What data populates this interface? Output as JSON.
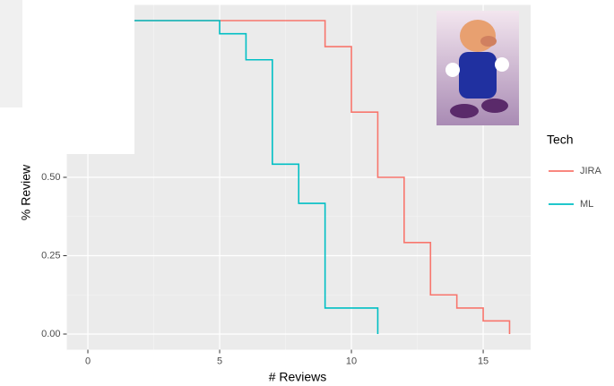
{
  "chart_data": {
    "type": "step",
    "x_label": "# Reviews",
    "y_label": "% Review",
    "legend_title": "Tech",
    "legend_position": "right",
    "series": [
      {
        "name": "JIRA",
        "color": "#f8766d",
        "x": [
          0,
          9,
          10,
          11,
          12,
          13,
          14,
          15,
          16
        ],
        "values": [
          1,
          0.917,
          0.708,
          0.5,
          0.292,
          0.125,
          0.083,
          0.042,
          0
        ]
      },
      {
        "name": "ML",
        "color": "#00bfc4",
        "x": [
          0,
          5,
          6,
          7,
          8,
          9,
          11
        ],
        "values": [
          1,
          0.958,
          0.875,
          0.542,
          0.417,
          0.083,
          0
        ]
      }
    ],
    "xlim": [
      -0.8,
      16.8
    ],
    "xticks": [
      0,
      5,
      10,
      15
    ],
    "ylim": [
      -0.05,
      1.05
    ],
    "yticks": [
      {
        "value": 0,
        "label": "0.00"
      },
      {
        "value": 0.25,
        "label": "0.25"
      },
      {
        "value": 0.5,
        "label": "0.50"
      }
    ],
    "grid": true
  }
}
